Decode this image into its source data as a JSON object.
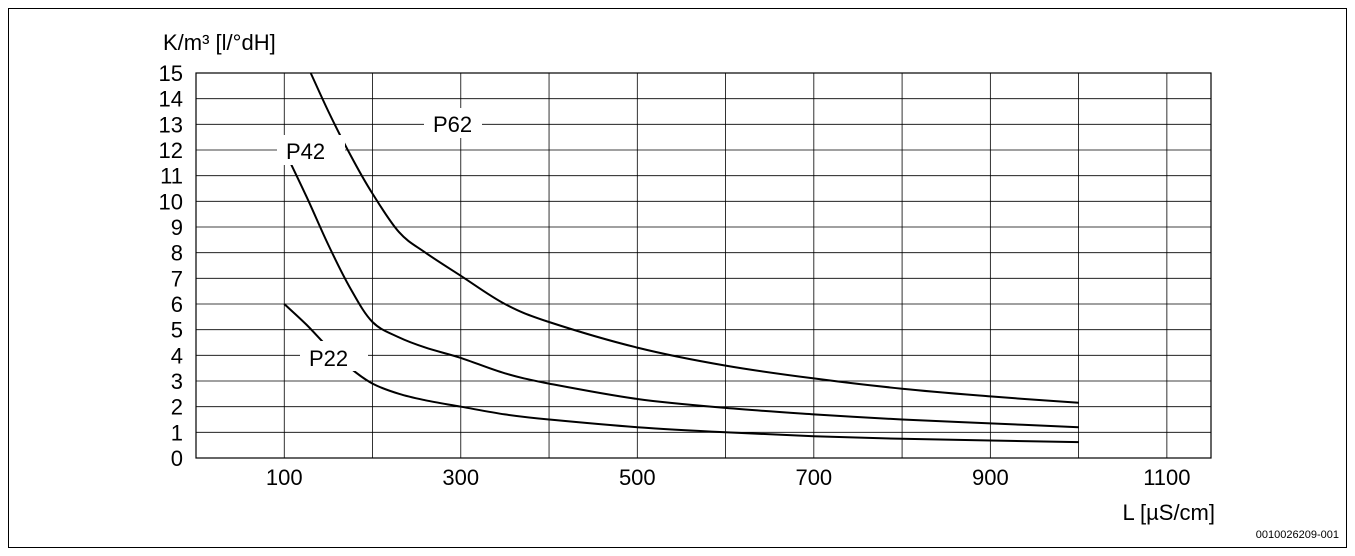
{
  "chart_data": {
    "type": "line",
    "ylabel": "K/m³ [l/°dH]",
    "xlabel": "L [µS/cm]",
    "xlim": [
      0,
      1150
    ],
    "ylim": [
      0,
      15
    ],
    "x_ticks": [
      100,
      300,
      500,
      700,
      900,
      1100
    ],
    "x_gridlines": [
      0,
      100,
      200,
      300,
      400,
      500,
      600,
      700,
      800,
      900,
      1000,
      1100,
      1150
    ],
    "y_ticks": [
      0,
      1,
      2,
      3,
      4,
      5,
      6,
      7,
      8,
      9,
      10,
      11,
      12,
      13,
      14,
      15
    ],
    "grid": true,
    "series": [
      {
        "name": "P62",
        "x": [
          130,
          150,
          175,
          200,
          230,
          260,
          300,
          350,
          400,
          500,
          600,
          700,
          800,
          900,
          1000
        ],
        "y": [
          15,
          13.5,
          11.8,
          10.3,
          8.8,
          8.0,
          7.1,
          6.0,
          5.3,
          4.3,
          3.6,
          3.1,
          2.7,
          2.4,
          2.15
        ]
      },
      {
        "name": "P42",
        "x": [
          100,
          125,
          150,
          175,
          200,
          230,
          260,
          300,
          350,
          400,
          500,
          600,
          700,
          800,
          900,
          1000
        ],
        "y": [
          12,
          10.2,
          8.3,
          6.6,
          5.3,
          4.7,
          4.3,
          3.9,
          3.3,
          2.9,
          2.3,
          1.95,
          1.7,
          1.5,
          1.35,
          1.2
        ]
      },
      {
        "name": "P22",
        "x": [
          100,
          125,
          150,
          175,
          200,
          230,
          260,
          300,
          350,
          400,
          500,
          600,
          700,
          800,
          900,
          1000
        ],
        "y": [
          6,
          5.2,
          4.3,
          3.5,
          2.9,
          2.5,
          2.25,
          2.0,
          1.7,
          1.5,
          1.2,
          1.0,
          0.85,
          0.75,
          0.68,
          0.62
        ]
      }
    ]
  },
  "figure_code": "0010026209-001"
}
